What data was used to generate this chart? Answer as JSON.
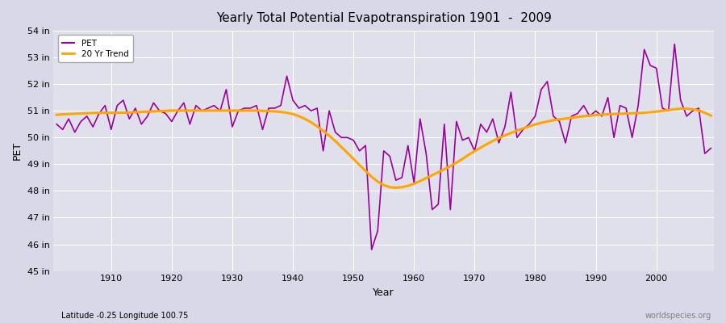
{
  "title": "Yearly Total Potential Evapotranspiration 1901  -  2009",
  "xlabel": "Year",
  "ylabel": "PET",
  "subtitle_left": "Latitude -0.25 Longitude 100.75",
  "subtitle_right": "worldspecies.org",
  "pet_color": "#990099",
  "trend_color": "#FFA500",
  "fig_bg_color": "#D8D8E8",
  "ax_bg_color": "#E0E0ED",
  "ylim": [
    45,
    54
  ],
  "yticks": [
    45,
    46,
    47,
    48,
    49,
    50,
    51,
    52,
    53,
    54
  ],
  "ytick_labels": [
    "45 in",
    "46 in",
    "47 in",
    "48 in",
    "49 in",
    "50 in",
    "51 in",
    "52 in",
    "53 in",
    "54 in"
  ],
  "xticks": [
    1910,
    1920,
    1930,
    1940,
    1950,
    1960,
    1970,
    1980,
    1990,
    2000
  ],
  "years": [
    1901,
    1902,
    1903,
    1904,
    1905,
    1906,
    1907,
    1908,
    1909,
    1910,
    1911,
    1912,
    1913,
    1914,
    1915,
    1916,
    1917,
    1918,
    1919,
    1920,
    1921,
    1922,
    1923,
    1924,
    1925,
    1926,
    1927,
    1928,
    1929,
    1930,
    1931,
    1932,
    1933,
    1934,
    1935,
    1936,
    1937,
    1938,
    1939,
    1940,
    1941,
    1942,
    1943,
    1944,
    1945,
    1946,
    1947,
    1948,
    1949,
    1950,
    1951,
    1952,
    1953,
    1954,
    1955,
    1956,
    1957,
    1958,
    1959,
    1960,
    1961,
    1962,
    1963,
    1964,
    1965,
    1966,
    1967,
    1968,
    1969,
    1970,
    1971,
    1972,
    1973,
    1974,
    1975,
    1976,
    1977,
    1978,
    1979,
    1980,
    1981,
    1982,
    1983,
    1984,
    1985,
    1986,
    1987,
    1988,
    1989,
    1990,
    1991,
    1992,
    1993,
    1994,
    1995,
    1996,
    1997,
    1998,
    1999,
    2000,
    2001,
    2002,
    2003,
    2004,
    2005,
    2006,
    2007,
    2008,
    2009
  ],
  "pet_values": [
    50.5,
    50.3,
    50.7,
    50.2,
    50.6,
    50.8,
    50.4,
    50.9,
    51.2,
    50.3,
    51.2,
    51.4,
    50.7,
    51.1,
    50.5,
    50.8,
    51.3,
    51.0,
    50.9,
    50.6,
    51.0,
    51.3,
    50.5,
    51.2,
    51.0,
    51.1,
    51.2,
    51.0,
    51.8,
    50.4,
    51.0,
    51.1,
    51.1,
    51.2,
    50.3,
    51.1,
    51.1,
    51.2,
    52.3,
    51.4,
    51.1,
    51.2,
    51.0,
    51.1,
    49.5,
    51.0,
    50.2,
    50.0,
    50.0,
    49.9,
    49.5,
    49.7,
    45.8,
    46.5,
    49.5,
    49.3,
    48.4,
    48.5,
    49.7,
    48.3,
    50.7,
    49.4,
    47.3,
    47.5,
    50.5,
    47.3,
    50.6,
    49.9,
    50.0,
    49.5,
    50.5,
    50.2,
    50.7,
    49.8,
    50.4,
    51.7,
    50.0,
    50.3,
    50.5,
    50.8,
    51.8,
    52.1,
    50.8,
    50.6,
    49.8,
    50.8,
    50.9,
    51.2,
    50.8,
    51.0,
    50.8,
    51.5,
    50.0,
    51.2,
    51.1,
    50.0,
    51.2,
    53.3,
    52.7,
    52.6,
    51.1,
    51.0,
    53.5,
    51.4,
    50.8,
    51.0,
    51.1,
    49.4,
    49.6
  ],
  "trend_values": [
    50.85,
    50.87,
    50.88,
    50.89,
    50.9,
    50.91,
    50.92,
    50.93,
    50.93,
    50.93,
    50.93,
    50.93,
    50.94,
    50.95,
    50.96,
    50.97,
    50.98,
    50.99,
    51.0,
    51.01,
    51.01,
    51.01,
    51.01,
    51.01,
    51.01,
    51.01,
    51.01,
    51.01,
    51.01,
    51.01,
    51.01,
    51.01,
    51.01,
    51.01,
    51.0,
    50.99,
    50.98,
    50.96,
    50.93,
    50.88,
    50.8,
    50.7,
    50.57,
    50.42,
    50.25,
    50.07,
    49.87,
    49.65,
    49.43,
    49.2,
    48.97,
    48.75,
    48.53,
    48.35,
    48.22,
    48.14,
    48.12,
    48.14,
    48.19,
    48.27,
    48.37,
    48.48,
    48.59,
    48.7,
    48.81,
    48.93,
    49.06,
    49.2,
    49.35,
    49.49,
    49.62,
    49.75,
    49.87,
    49.98,
    50.08,
    50.17,
    50.26,
    50.34,
    50.42,
    50.49,
    50.55,
    50.6,
    50.65,
    50.68,
    50.71,
    50.74,
    50.77,
    50.8,
    50.82,
    50.84,
    50.86,
    50.87,
    50.88,
    50.89,
    50.9,
    50.91,
    50.92,
    50.93,
    50.95,
    50.97,
    51.0,
    51.03,
    51.06,
    51.08,
    51.08,
    51.06,
    51.01,
    50.93,
    50.82
  ]
}
